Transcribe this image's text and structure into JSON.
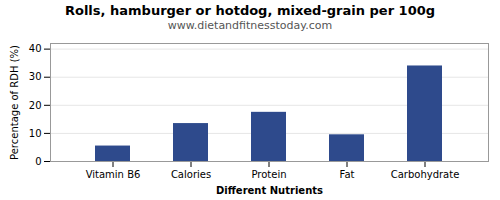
{
  "chart_data": {
    "type": "bar",
    "title": "Rolls, hamburger or hotdog, mixed-grain per 100g",
    "subtitle": "www.dietandfitnesstoday.com",
    "xlabel": "Different Nutrients",
    "ylabel": "Percentage of RDH (%)",
    "categories": [
      "Vitamin B6",
      "Calories",
      "Protein",
      "Fat",
      "Carbohydrate"
    ],
    "values": [
      5.5,
      13.5,
      17.5,
      9.5,
      34.0
    ],
    "color": "#2e4a8c",
    "ylim": [
      0,
      42
    ],
    "yticks": [
      0,
      10,
      20,
      30,
      40
    ],
    "grid": true
  }
}
